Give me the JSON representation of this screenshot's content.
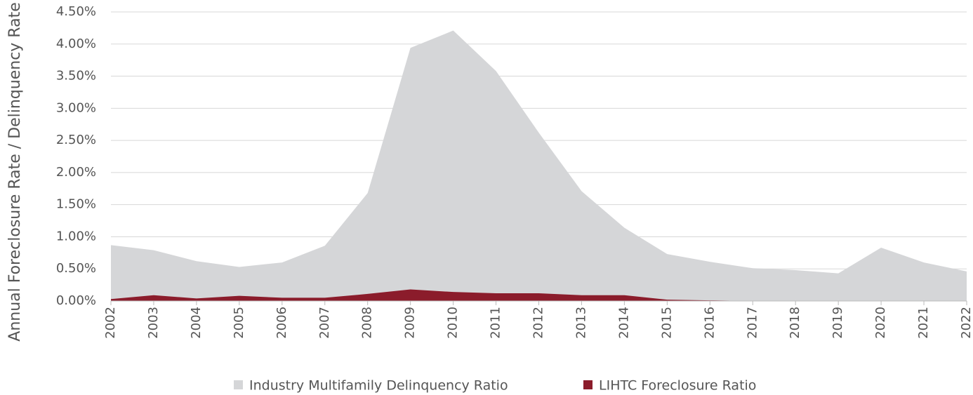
{
  "chart_data": {
    "type": "area",
    "y_label": "Annual Foreclosure Rate / Delinquency Rate",
    "categories": [
      "2002",
      "2003",
      "2004",
      "2005",
      "2006",
      "2007",
      "2008",
      "2009",
      "2010",
      "2011",
      "2012",
      "2013",
      "2014",
      "2015",
      "2016",
      "2017",
      "2018",
      "2019",
      "2020",
      "2021",
      "2022"
    ],
    "series": [
      {
        "name": "Industry Multifamily Delinquency Ratio",
        "color": "#d5d6d8",
        "values": [
          0.87,
          0.79,
          0.62,
          0.53,
          0.6,
          0.86,
          1.68,
          3.94,
          4.21,
          3.58,
          2.62,
          1.71,
          1.14,
          0.73,
          0.61,
          0.51,
          0.48,
          0.43,
          0.83,
          0.6,
          0.46
        ]
      },
      {
        "name": "LIHTC Foreclosure Ratio",
        "color": "#8b1c2b",
        "values": [
          0.03,
          0.09,
          0.04,
          0.08,
          0.05,
          0.05,
          0.11,
          0.18,
          0.14,
          0.12,
          0.12,
          0.09,
          0.09,
          0.02,
          0.01,
          0,
          0,
          0,
          0,
          0,
          0
        ]
      }
    ],
    "ylim": [
      0,
      4.5
    ],
    "yticks": [
      {
        "value": 0,
        "label": "0.00%"
      },
      {
        "value": 0.5,
        "label": "0.50%"
      },
      {
        "value": 1,
        "label": "1.00%"
      },
      {
        "value": 1.5,
        "label": "1.50%"
      },
      {
        "value": 2,
        "label": "2.00%"
      },
      {
        "value": 2.5,
        "label": "2.50%"
      },
      {
        "value": 3,
        "label": "3.00%"
      },
      {
        "value": 3.5,
        "label": "3.50%"
      },
      {
        "value": 4,
        "label": "4.00%"
      },
      {
        "value": 4.5,
        "label": "4.50%"
      }
    ],
    "grid": true
  }
}
